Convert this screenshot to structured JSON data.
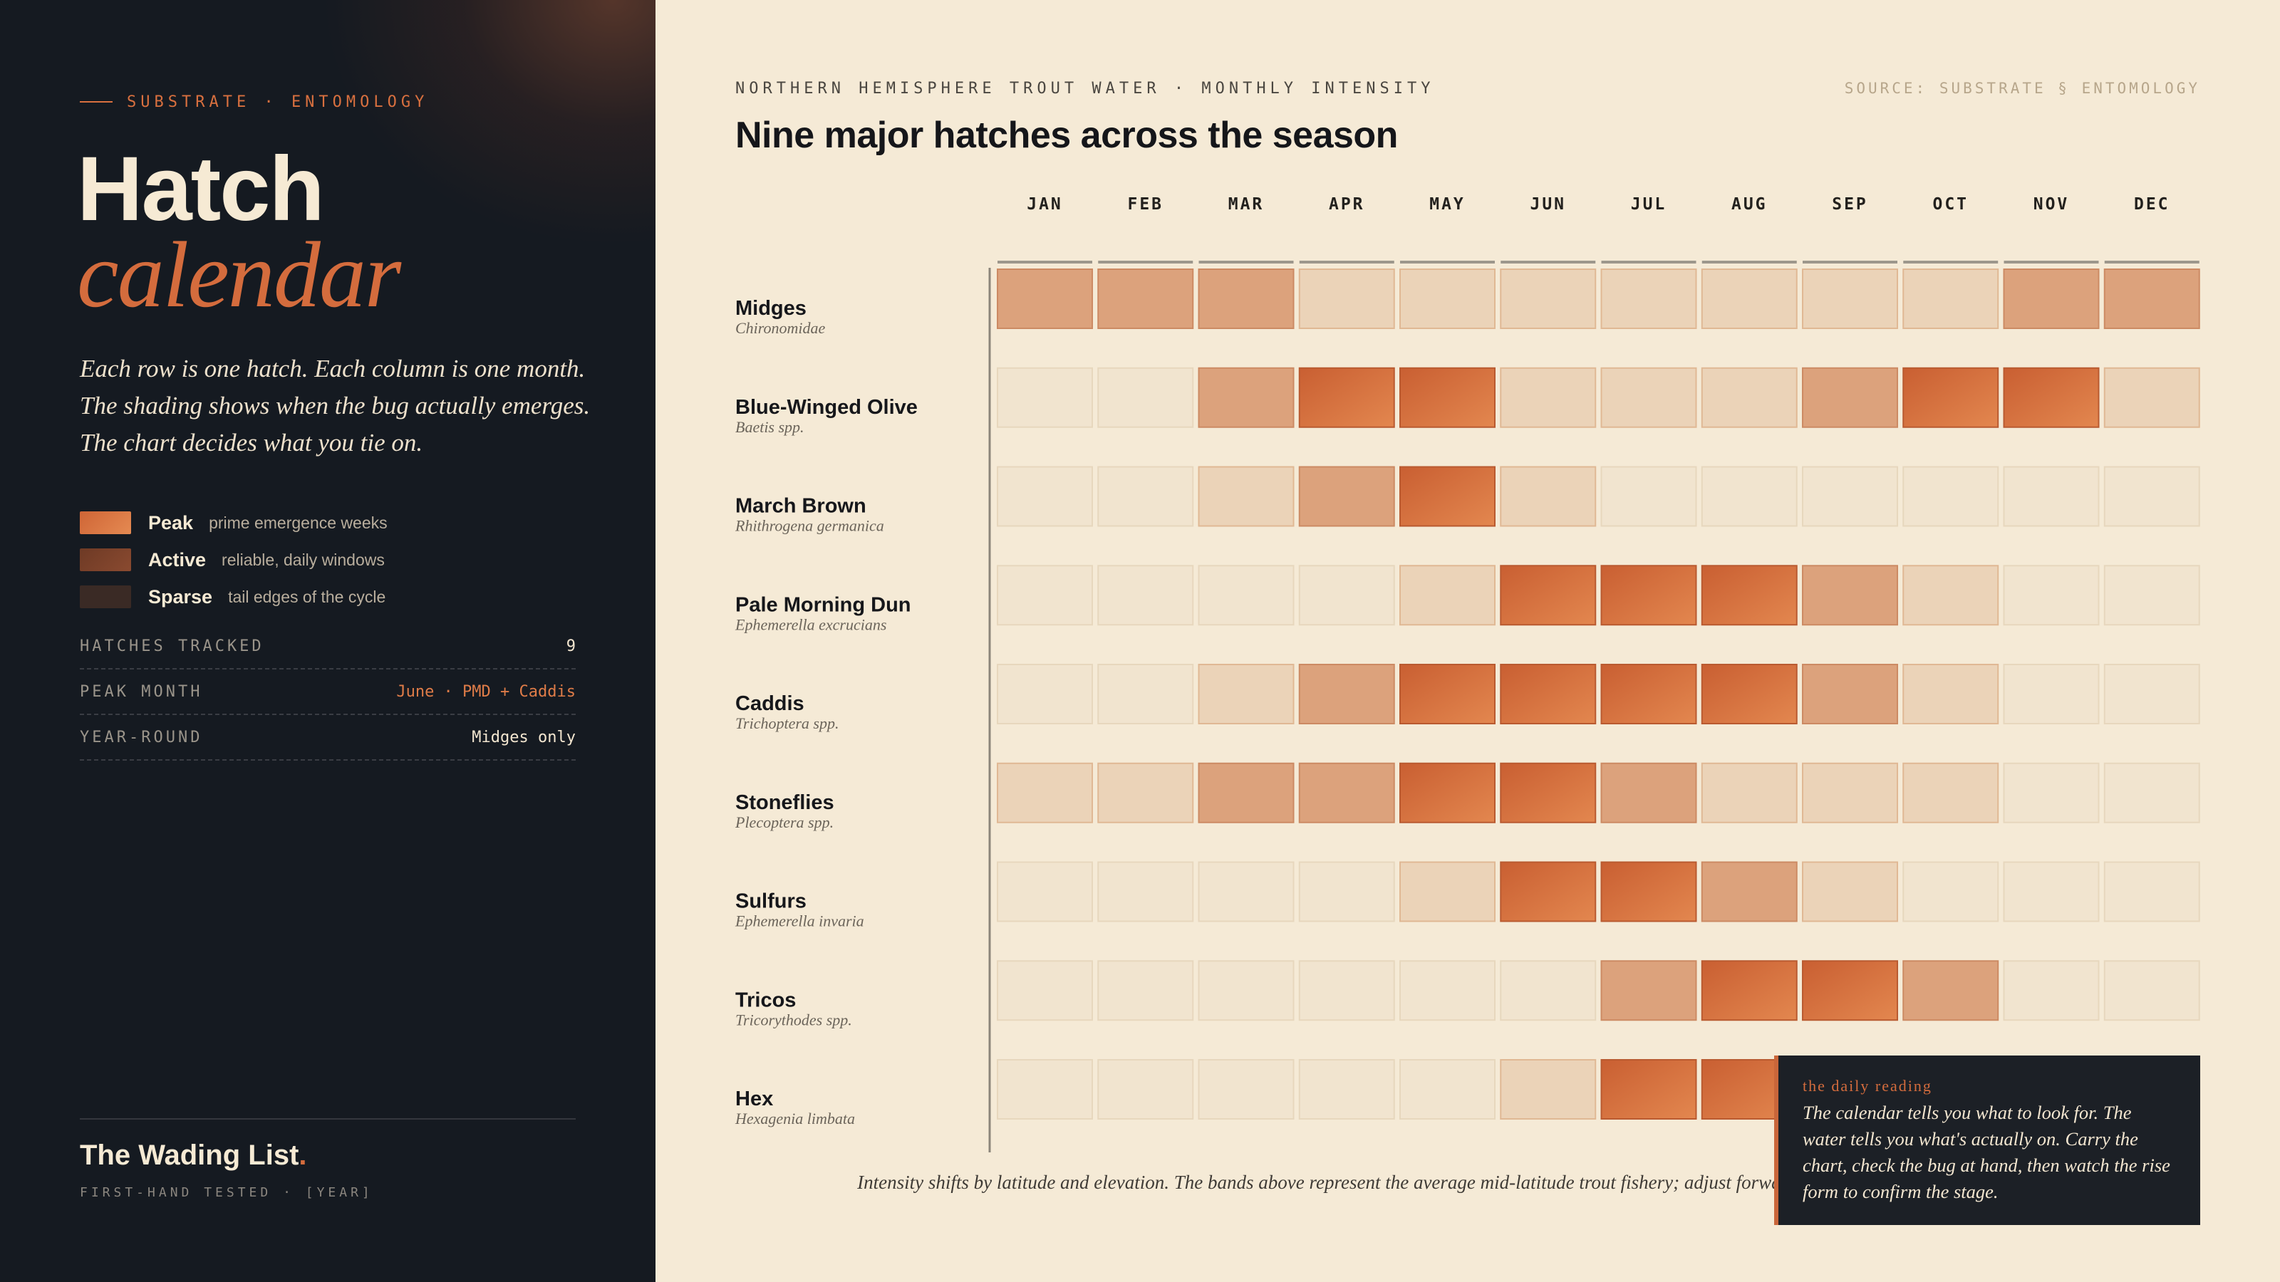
{
  "sidebar": {
    "eyebrow": "SUBSTRATE · ENTOMOLOGY",
    "title_line1": "Hatch",
    "title_line2": "calendar",
    "lede": "Each row is one hatch. Each column is one month. The shading shows when the bug actually emerges. The chart decides what you tie on.",
    "legend": [
      {
        "name": "Peak",
        "desc": "prime emergence weeks",
        "color": "#e07f4a"
      },
      {
        "name": "Active",
        "desc": "reliable, daily windows",
        "color": "#7a4128"
      },
      {
        "name": "Sparse",
        "desc": "tail edges of the cycle",
        "color": "#3b2b26"
      }
    ],
    "stats": [
      {
        "label": "HATCHES TRACKED",
        "value": "9",
        "accent": false
      },
      {
        "label": "PEAK MONTH",
        "value": "June · PMD + Caddis",
        "accent": true
      },
      {
        "label": "YEAR-ROUND",
        "value": "Midges only",
        "accent": false
      }
    ],
    "brand": "The Wading List",
    "brand_dot": ".",
    "brand_sub": "FIRST-HAND TESTED · [YEAR]"
  },
  "header": {
    "kicker": "NORTHERN HEMISPHERE TROUT WATER · MONTHLY INTENSITY",
    "source": "SOURCE: SUBSTRATE § ENTOMOLOGY",
    "title": "Nine major hatches across the season"
  },
  "chart_data": {
    "type": "heatmap",
    "x": [
      "JAN",
      "FEB",
      "MAR",
      "APR",
      "MAY",
      "JUN",
      "JUL",
      "AUG",
      "SEP",
      "OCT",
      "NOV",
      "DEC"
    ],
    "scale": "0 = none, 1 = sparse, 2 = active, 3 = peak",
    "rows": [
      {
        "name": "Midges",
        "latin": "Chironomidae",
        "values": [
          2,
          2,
          2,
          1,
          1,
          1,
          1,
          1,
          1,
          1,
          2,
          2
        ]
      },
      {
        "name": "Blue-Winged Olive",
        "latin": "Baetis spp.",
        "values": [
          0,
          0,
          2,
          3,
          3,
          1,
          1,
          1,
          2,
          3,
          3,
          1
        ]
      },
      {
        "name": "March Brown",
        "latin": "Rhithrogena germanica",
        "values": [
          0,
          0,
          1,
          2,
          3,
          1,
          0,
          0,
          0,
          0,
          0,
          0
        ]
      },
      {
        "name": "Pale Morning Dun",
        "latin": "Ephemerella excrucians",
        "values": [
          0,
          0,
          0,
          0,
          1,
          3,
          3,
          3,
          2,
          1,
          0,
          0
        ]
      },
      {
        "name": "Caddis",
        "latin": "Trichoptera spp.",
        "values": [
          0,
          0,
          1,
          2,
          3,
          3,
          3,
          3,
          2,
          1,
          0,
          0
        ]
      },
      {
        "name": "Stoneflies",
        "latin": "Plecoptera spp.",
        "values": [
          1,
          1,
          2,
          2,
          3,
          3,
          2,
          1,
          1,
          1,
          0,
          0
        ]
      },
      {
        "name": "Sulfurs",
        "latin": "Ephemerella invaria",
        "values": [
          0,
          0,
          0,
          0,
          1,
          3,
          3,
          2,
          1,
          0,
          0,
          0
        ]
      },
      {
        "name": "Tricos",
        "latin": "Tricorythodes spp.",
        "values": [
          0,
          0,
          0,
          0,
          0,
          0,
          2,
          3,
          3,
          2,
          0,
          0
        ]
      },
      {
        "name": "Hex",
        "latin": "Hexagenia limbata",
        "values": [
          0,
          0,
          0,
          0,
          0,
          1,
          3,
          3,
          0,
          0,
          0,
          0
        ]
      }
    ],
    "colors": {
      "none": "#f1e4cf",
      "sparse": "#ebd3b8",
      "active": "#dca27c",
      "peak": "#d46c3d"
    },
    "footnote": "Intensity shifts by latitude and elevation. The bands above represent the average mid-latitude trout fishery; adjust forward to southern, backward for northern."
  },
  "callout": {
    "title": "the daily reading",
    "body": "The calendar tells you what to look for. The water tells you what's actually on. Carry the chart, check the bug at hand, then watch the rise form to confirm the stage."
  }
}
